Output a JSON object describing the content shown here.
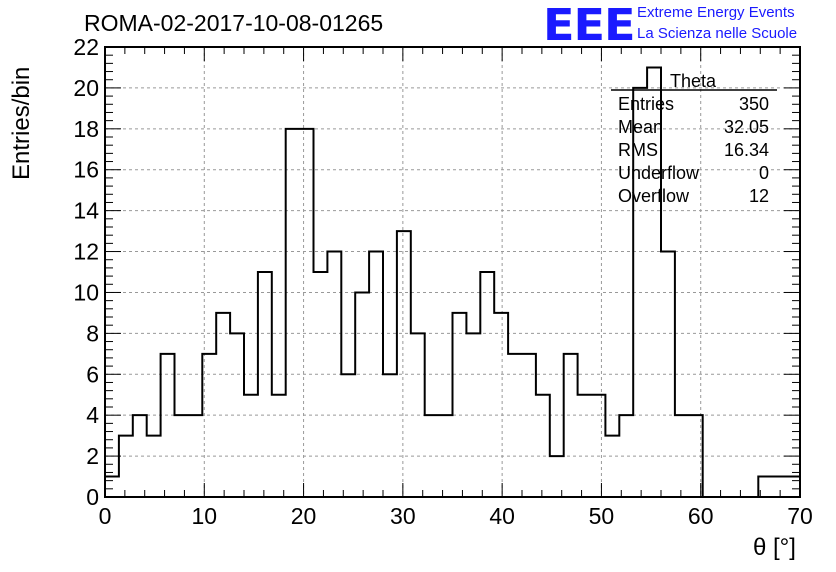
{
  "title": "ROMA-02-2017-10-08-01265",
  "logo": {
    "mark": "EEE",
    "line1": "Extreme Energy Events",
    "line2": "La Scienza nelle Scuole",
    "color": "#1a1aff"
  },
  "stats_box": {
    "name": "Theta",
    "rows": [
      {
        "label": "Entries",
        "value": "350"
      },
      {
        "label": "Mean",
        "value": "32.05"
      },
      {
        "label": "RMS",
        "value": "16.34"
      },
      {
        "label": "Underflow",
        "value": "0"
      },
      {
        "label": "Overflow",
        "value": "12"
      }
    ]
  },
  "chart_data": {
    "type": "histogram",
    "xlabel": "θ [°]",
    "ylabel": "Entries/bin",
    "xlim": [
      0,
      70
    ],
    "ylim": [
      0,
      22
    ],
    "x_ticks": [
      0,
      10,
      20,
      30,
      40,
      50,
      60,
      70
    ],
    "y_ticks": [
      0,
      2,
      4,
      6,
      8,
      10,
      12,
      14,
      16,
      18,
      20,
      22
    ],
    "grid": true,
    "bin_edges": [
      0,
      1.4,
      2.8,
      4.2,
      5.6,
      7,
      8.4,
      9.8,
      11.2,
      12.6,
      14,
      15.4,
      16.8,
      18.2,
      19.6,
      21,
      22.4,
      23.8,
      25.2,
      26.6,
      28,
      29.4,
      30.8,
      32.2,
      33.6,
      35,
      36.4,
      37.8,
      39.2,
      40.6,
      42,
      43.4,
      44.8,
      46.2,
      47.6,
      49,
      50.4,
      51.8,
      53.2,
      54.6,
      56,
      57.4,
      58.8,
      60.2,
      61.6,
      63,
      64.4,
      65.8,
      67.2,
      68.6,
      70
    ],
    "values": [
      1,
      3,
      4,
      3,
      7,
      4,
      4,
      7,
      9,
      8,
      5,
      11,
      5,
      18,
      18,
      11,
      12,
      6,
      10,
      12,
      6,
      13,
      8,
      4,
      4,
      9,
      8,
      11,
      9,
      7,
      7,
      5,
      2,
      7,
      5,
      5,
      3,
      4,
      20,
      21,
      12,
      4,
      4,
      0,
      0,
      0,
      0,
      1,
      1,
      1
    ]
  }
}
